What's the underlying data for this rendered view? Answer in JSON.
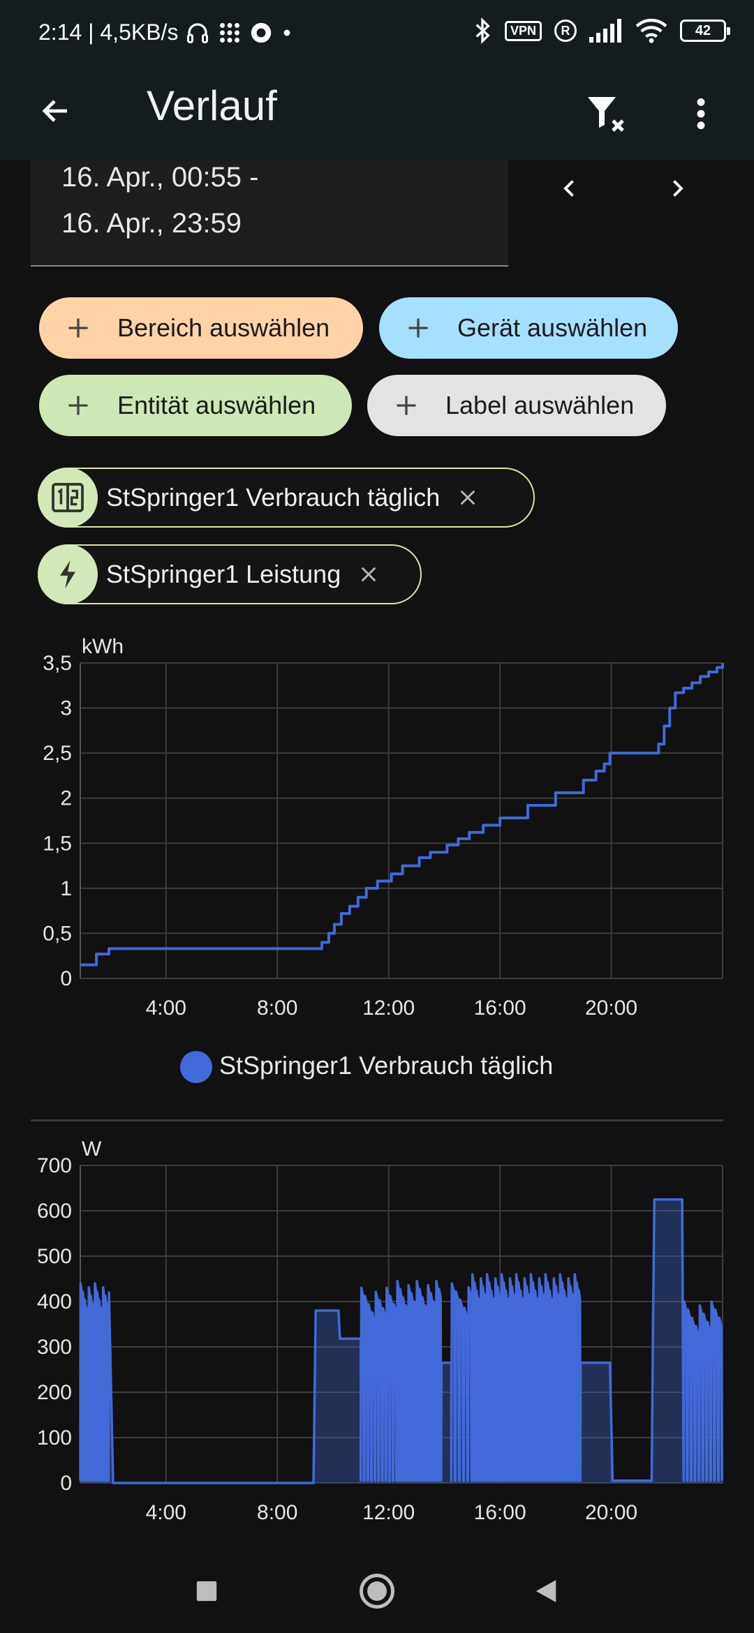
{
  "status_bar": {
    "time_speed": "2:14 | 4,5KB/s",
    "vpn": "VPN",
    "r_badge": "R",
    "battery": "42",
    "icons": [
      "headset-icon",
      "dots-grid-icon",
      "record-icon",
      "bluetooth-icon",
      "signal-icon",
      "wifi-icon"
    ]
  },
  "app_bar": {
    "title": "Verlauf",
    "icons": [
      "back-arrow-icon",
      "filter-remove-icon",
      "more-vert-icon"
    ]
  },
  "date_range": {
    "line1": "16. Apr., 00:55 -",
    "line2": "16. Apr., 23:59"
  },
  "chips": {
    "area": "Bereich auswählen",
    "device": "Gerät auswählen",
    "entity": "Entität auswählen",
    "label": "Label auswählen"
  },
  "selected": {
    "energy": "StSpringer1 Verbrauch täglich",
    "power": "StSpringer1 Leistung"
  },
  "colors": {
    "series": "#4169d8",
    "chip_orange": "#ffd3a5",
    "chip_blue": "#a6e0ff",
    "chip_green": "#cde8b4",
    "chip_gray": "#e3e3e3"
  },
  "chart_data": [
    {
      "type": "line",
      "unit": "kWh",
      "ylim": [
        0,
        3.5
      ],
      "yticks": [
        0,
        0.5,
        1,
        1.5,
        2,
        2.5,
        3,
        3.5
      ],
      "ytick_labels": [
        "0",
        "0,5",
        "1",
        "1,5",
        "2",
        "2,5",
        "3",
        "3,5"
      ],
      "xlim": [
        0.92,
        24.0
      ],
      "xticks": [
        4,
        8,
        12,
        16,
        20
      ],
      "xtick_labels": [
        "4:00",
        "8:00",
        "12:00",
        "16:00",
        "20:00"
      ],
      "grid": true,
      "legend": "bottom-center",
      "series": [
        {
          "name": "StSpringer1 Verbrauch täglich",
          "step": true,
          "x": [
            0.92,
            1.5,
            1.95,
            9.45,
            9.6,
            9.85,
            10.05,
            10.3,
            10.6,
            10.9,
            11.2,
            11.6,
            12.1,
            12.5,
            13.1,
            13.5,
            14.1,
            14.5,
            14.9,
            15.4,
            16.0,
            17.0,
            18.0,
            19.0,
            19.45,
            19.75,
            19.95,
            21.5,
            21.7,
            21.9,
            22.1,
            22.3,
            22.6,
            22.9,
            23.2,
            23.5,
            23.8,
            24.0
          ],
          "y": [
            0.15,
            0.27,
            0.33,
            0.33,
            0.4,
            0.5,
            0.6,
            0.72,
            0.8,
            0.9,
            1.0,
            1.08,
            1.16,
            1.25,
            1.34,
            1.4,
            1.48,
            1.55,
            1.62,
            1.7,
            1.78,
            1.92,
            2.06,
            2.2,
            2.3,
            2.38,
            2.5,
            2.5,
            2.6,
            2.8,
            3.0,
            3.17,
            3.22,
            3.28,
            3.35,
            3.4,
            3.45,
            3.5
          ]
        }
      ]
    },
    {
      "type": "line",
      "unit": "W",
      "ylim": [
        0,
        700
      ],
      "yticks": [
        0,
        100,
        200,
        300,
        400,
        500,
        600,
        700
      ],
      "ytick_labels": [
        "0",
        "100",
        "200",
        "300",
        "400",
        "500",
        "600",
        "700"
      ],
      "xlim": [
        0.92,
        24.0
      ],
      "xticks": [
        4,
        8,
        12,
        16,
        20
      ],
      "xtick_labels": [
        "4:00",
        "8:00",
        "12:00",
        "16:00",
        "20:00"
      ],
      "grid": true,
      "series": [
        {
          "name": "StSpringer1 Leistung",
          "segments": [
            {
              "x0": 0.92,
              "x1": 1.95,
              "low": 5,
              "high": 440,
              "n": 14
            },
            {
              "x": [
                1.95,
                2.1,
                9.3,
                9.38,
                10.2,
                10.25,
                11.0
              ]
            },
            {
              "y": [
                420,
                0,
                0,
                380,
                380,
                318,
                318
              ]
            },
            {
              "x0": 11.0,
              "x1": 12.3,
              "low": 5,
              "high": 430,
              "n": 10
            },
            {
              "x0": 12.3,
              "x1": 13.9,
              "low": 5,
              "high": 445,
              "n": 16
            },
            {
              "x": [
                13.9,
                14.25
              ]
            },
            {
              "y": [
                265,
                265
              ]
            },
            {
              "x0": 14.25,
              "x1": 15.0,
              "low": 5,
              "high": 440,
              "n": 5
            },
            {
              "x0": 15.0,
              "x1": 18.9,
              "low": 5,
              "high": 460,
              "n": 52
            },
            {
              "x": [
                18.9,
                19.0,
                19.95,
                20.05,
                21.45,
                21.5,
                21.55,
                22.55,
                22.6
              ]
            },
            {
              "y": [
                265,
                265,
                265,
                5,
                5,
                345,
                625,
                625,
                5
              ]
            },
            {
              "x0": 22.6,
              "x1": 24.0,
              "low": 5,
              "high": 400,
              "n": 10
            }
          ]
        }
      ]
    }
  ]
}
